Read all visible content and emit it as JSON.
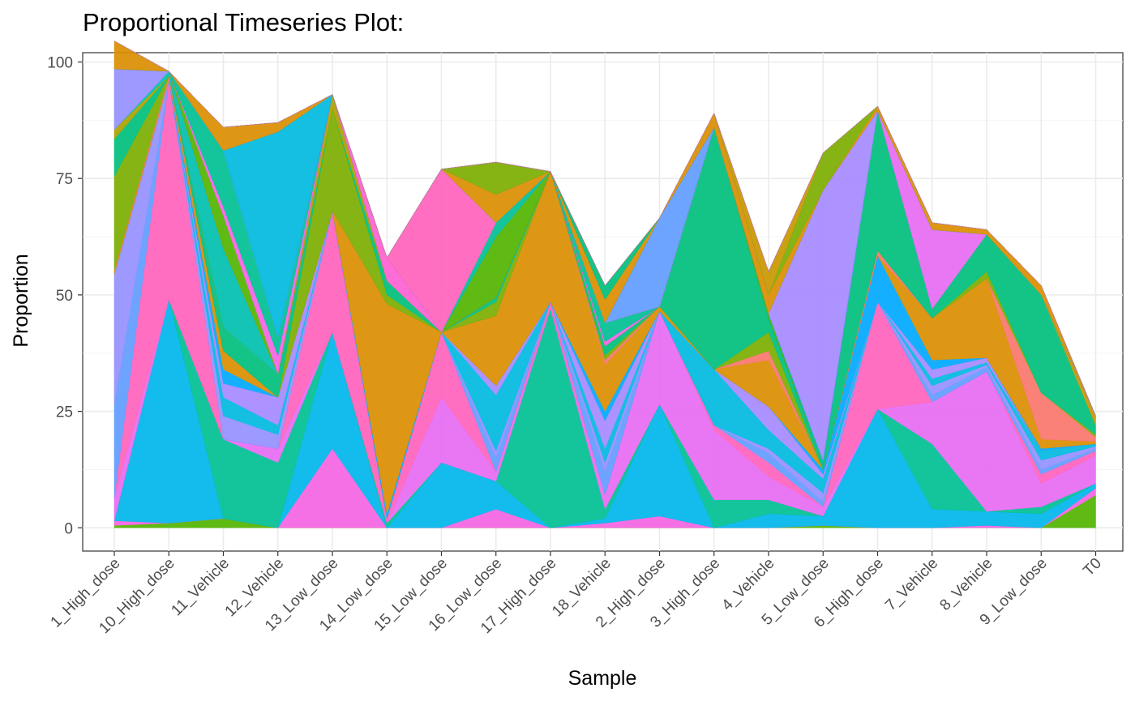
{
  "chart_data": {
    "type": "area",
    "title": "Proportional Timeseries Plot:",
    "xlabel": "Sample",
    "ylabel": "Proportion",
    "ylim": [
      -5,
      102
    ],
    "yticks": [
      0,
      25,
      50,
      75,
      100
    ],
    "grid": true,
    "stacked": true,
    "categories": [
      "1_High_dose",
      "10_High_dose",
      "11_Vehicle",
      "12_Vehicle",
      "13_Low_dose",
      "14_Low_dose",
      "15_Low_dose",
      "16_Low_dose",
      "17_High_dose",
      "18_Vehicle",
      "2_High_dose",
      "3_High_dose",
      "4_Vehicle",
      "5_Low_dose",
      "6_High_dose",
      "7_Vehicle",
      "8_Vehicle",
      "9_Low_dose",
      "T0"
    ],
    "series_colors": [
      "#53B400",
      "#F564E3",
      "#00B6EB",
      "#00C094",
      "#E76BF3",
      "#FF62BC",
      "#619CFF",
      "#9590FF",
      "#00BAE0",
      "#A58AFF",
      "#00A9FF",
      "#DB8E00",
      "#F8766D",
      "#7CAE00",
      "#00BF7D",
      "#C99800",
      "#AEA200",
      "#00C0AF",
      "#39B600",
      "#FD61D1"
    ],
    "series": [
      {
        "values": [
          0.5,
          1,
          2,
          0,
          0,
          0,
          0,
          0,
          0,
          0,
          0,
          0,
          0,
          0.5,
          0,
          0,
          0,
          0,
          7
        ]
      },
      {
        "values": [
          1,
          0,
          0,
          0,
          17,
          0,
          0,
          4,
          0,
          1,
          2.5,
          0,
          0,
          0,
          0,
          0,
          0.5,
          0,
          1.5
        ]
      },
      {
        "values": [
          0,
          48,
          0,
          0,
          25,
          0,
          14,
          6,
          0,
          1,
          24,
          0,
          3,
          2,
          25.5,
          4,
          3,
          3,
          1
        ]
      },
      {
        "values": [
          0,
          0,
          17,
          14,
          0,
          1,
          0,
          0,
          47,
          2,
          0,
          6,
          3,
          0,
          0,
          14,
          0,
          1.5,
          0
        ]
      },
      {
        "values": [
          5,
          0,
          0,
          3,
          0,
          0,
          14,
          2,
          0,
          3,
          20,
          15,
          5,
          2,
          0,
          9,
          30,
          5,
          6
        ]
      },
      {
        "values": [
          0,
          47,
          0,
          0,
          26,
          1,
          14,
          0,
          1.5,
          0,
          0,
          1,
          3,
          0,
          23,
          0,
          0,
          2,
          1
        ]
      },
      {
        "values": [
          20,
          0,
          0,
          0,
          0,
          0,
          0,
          3,
          0,
          5,
          0,
          0,
          2,
          1,
          0,
          1.5,
          1,
          1,
          0.5
        ]
      },
      {
        "values": [
          28,
          0,
          5,
          3,
          0,
          0,
          0,
          1.5,
          0,
          2,
          0,
          0,
          1,
          2,
          0,
          2,
          0.5,
          2,
          0.5
        ]
      },
      {
        "values": [
          0,
          0,
          4,
          2,
          0,
          0,
          0,
          12,
          0,
          3,
          0,
          12,
          4,
          3,
          0,
          1.5,
          0.5,
          2,
          0.5
        ]
      },
      {
        "values": [
          0,
          0,
          3,
          6,
          0,
          0,
          0,
          2,
          0,
          6,
          0,
          0,
          5,
          1,
          0,
          2,
          1,
          0,
          0
        ]
      },
      {
        "values": [
          0,
          0,
          3,
          0,
          0,
          1,
          0,
          0,
          0,
          2,
          0,
          0,
          0,
          1,
          10,
          2,
          0,
          0.5,
          0
        ]
      },
      {
        "values": [
          1,
          0,
          4,
          0,
          0,
          45,
          0,
          15,
          28,
          10,
          1,
          0,
          10,
          0,
          0,
          9,
          17,
          2,
          0.5
        ]
      },
      {
        "values": [
          0,
          1,
          0,
          0,
          0,
          0,
          0,
          0,
          0,
          1,
          0,
          0,
          2,
          0,
          1,
          0,
          0,
          10,
          1
        ]
      },
      {
        "values": [
          20,
          0,
          0,
          0,
          22,
          2,
          0,
          3,
          0,
          1,
          0,
          0,
          4,
          0,
          0,
          0,
          1.5,
          0,
          0.5
        ]
      },
      {
        "values": [
          8,
          0,
          5,
          5,
          0,
          3,
          0,
          1,
          0,
          2,
          0,
          52,
          3,
          1,
          30,
          2,
          8,
          21,
          2
        ]
      },
      {
        "values": [
          0,
          0,
          0,
          0,
          0,
          0,
          0,
          0,
          0,
          0,
          0,
          0,
          0,
          0,
          0,
          0,
          0,
          0,
          2
        ]
      },
      {
        "values": [
          2,
          0,
          0,
          0,
          3,
          0,
          0,
          0,
          0,
          0,
          0,
          0,
          0,
          0,
          0,
          0,
          0,
          0,
          0
        ]
      },
      {
        "values": [
          0,
          1,
          17,
          0,
          0,
          0,
          0,
          0,
          0,
          0,
          0,
          0,
          0,
          0,
          0,
          0,
          0,
          0,
          0
        ]
      },
      {
        "values": [
          0,
          0,
          0,
          0,
          0,
          0,
          0,
          0,
          0,
          0,
          0,
          0,
          1,
          0,
          0,
          0,
          0,
          0,
          0
        ]
      },
      {
        "values": [
          0,
          0,
          0,
          0,
          0,
          5,
          0,
          0,
          0,
          0,
          0,
          0,
          0,
          0,
          0,
          0,
          0,
          0,
          0
        ]
      },
      {
        "values": [
          0,
          0,
          7,
          0,
          0,
          0,
          0,
          13,
          0,
          0,
          0,
          0,
          0,
          0,
          0,
          0,
          0,
          0,
          0
        ]
      },
      {
        "values": [
          0,
          0,
          2,
          4,
          0,
          0,
          0,
          0,
          0,
          1,
          0,
          0,
          0,
          0,
          0,
          0,
          0,
          0,
          0
        ]
      },
      {
        "values": [
          0,
          0,
          0,
          0,
          0,
          0,
          0,
          0,
          0,
          0,
          0,
          0,
          0,
          0,
          0,
          0,
          0,
          0,
          0
        ]
      },
      {
        "values": [
          0,
          0,
          12,
          4,
          0,
          0,
          0,
          3,
          0,
          4,
          0,
          0,
          0,
          1,
          0,
          0,
          0,
          0,
          0
        ]
      },
      {
        "values": [
          0,
          0,
          0,
          0,
          0,
          0,
          0,
          0,
          0,
          0,
          0,
          0,
          0,
          0,
          0,
          17,
          0,
          0,
          0
        ]
      },
      {
        "values": [
          0,
          0,
          0,
          0,
          0,
          0,
          35,
          0,
          0,
          0,
          0,
          0,
          0,
          0,
          0,
          0,
          0,
          0,
          0
        ]
      },
      {
        "values": [
          0,
          0,
          0,
          0,
          0,
          0,
          0,
          0,
          0,
          0,
          19,
          0,
          0,
          0,
          0,
          0,
          0,
          0,
          0
        ]
      },
      {
        "values": [
          13,
          0,
          0,
          0,
          0,
          0,
          0,
          0,
          0,
          0,
          0,
          0,
          0,
          0,
          0,
          0,
          0,
          0,
          0
        ]
      },
      {
        "values": [
          0,
          0,
          0,
          44,
          0,
          0,
          0,
          0,
          0,
          0,
          0,
          0,
          0,
          0,
          0,
          0,
          0,
          0,
          0
        ]
      },
      {
        "values": [
          0,
          0,
          0,
          0,
          0,
          0,
          0,
          0,
          0,
          0,
          0,
          0,
          0,
          58,
          0,
          0,
          0,
          0,
          0
        ]
      },
      {
        "values": [
          0,
          0,
          0,
          0,
          0,
          0,
          0,
          0,
          0,
          0,
          0,
          0,
          0,
          0,
          0,
          0,
          0,
          0,
          0
        ]
      },
      {
        "values": [
          6,
          0,
          5,
          2,
          0,
          0,
          0,
          6,
          0,
          5,
          0,
          3,
          4,
          0,
          1,
          1.5,
          1,
          2,
          0
        ]
      },
      {
        "values": [
          0,
          0,
          0,
          0,
          0,
          0,
          0,
          0,
          0,
          0,
          0,
          0,
          0,
          0,
          0,
          0,
          0,
          0,
          0
        ]
      },
      {
        "values": [
          0,
          0,
          0,
          0,
          0,
          0,
          0,
          7,
          0,
          0,
          0,
          0,
          0,
          8,
          0,
          0,
          0,
          0,
          0
        ]
      },
      {
        "values": [
          0,
          0,
          0,
          0,
          0,
          0,
          0,
          0,
          0,
          3,
          0,
          0,
          0,
          0,
          0,
          0,
          0,
          0,
          0
        ]
      },
      {
        "values": [
          0,
          0,
          0,
          0,
          0,
          0,
          0,
          0,
          0,
          0,
          0,
          0,
          5,
          0,
          0,
          0,
          0,
          0,
          0
        ]
      },
      {
        "values": [
          0,
          0,
          0,
          0,
          0,
          0,
          0,
          0,
          0,
          0,
          0,
          0,
          0,
          0,
          0,
          0,
          0,
          0,
          0
        ]
      },
      {
        "values": [
          0,
          0,
          0,
          0,
          0,
          0,
          0,
          0,
          0,
          0,
          0,
          0,
          0,
          0,
          0,
          0,
          0,
          0,
          0
        ]
      },
      {
        "values": [
          0,
          0,
          0,
          0,
          0,
          0,
          0,
          0,
          0,
          0,
          0,
          0,
          0,
          0,
          0,
          0,
          0,
          0,
          0
        ]
      },
      {
        "values": [
          0,
          0,
          0,
          0,
          0,
          0,
          0,
          0,
          0,
          0,
          0,
          0,
          0,
          0,
          0,
          0,
          0,
          0,
          0
        ]
      }
    ]
  }
}
